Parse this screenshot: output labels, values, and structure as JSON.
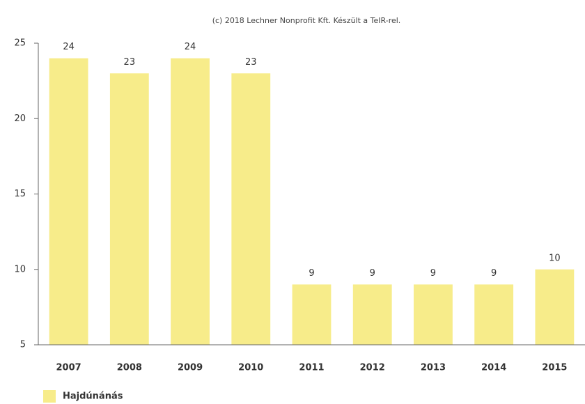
{
  "chart_data": {
    "type": "bar",
    "title": "(c) 2018 Lechner Nonprofit Kft. Készült a TeIR-rel.",
    "categories": [
      "2007",
      "2008",
      "2009",
      "2010",
      "2011",
      "2012",
      "2013",
      "2014",
      "2015"
    ],
    "series": [
      {
        "name": "Hajdúnánás",
        "color": "#f7ec8a",
        "values": [
          24,
          23,
          24,
          23,
          9,
          9,
          9,
          9,
          10
        ]
      }
    ],
    "ylim": [
      5,
      25
    ],
    "yticks": [
      5,
      10,
      15,
      20,
      25
    ],
    "grid": false,
    "legend": "bottom-left"
  }
}
